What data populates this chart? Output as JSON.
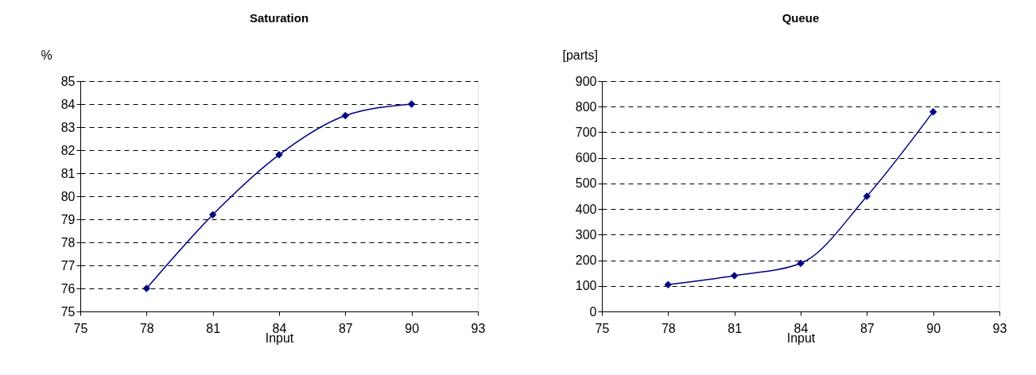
{
  "chart_data": [
    {
      "type": "line",
      "title": "Saturation",
      "xlabel": "Input",
      "ylabel": "%",
      "x": [
        78,
        81,
        84,
        87,
        90
      ],
      "series": [
        {
          "color": "#000080",
          "values": [
            76,
            79.2,
            81.8,
            83.5,
            84
          ]
        }
      ],
      "xlim": [
        75,
        93
      ],
      "xticks": [
        75,
        78,
        81,
        84,
        87,
        90,
        93
      ],
      "ylim": [
        75,
        85
      ],
      "yticks": [
        75,
        76,
        77,
        78,
        79,
        80,
        81,
        82,
        83,
        84,
        85
      ],
      "grid": "y",
      "marker": "diamond",
      "line_style": "solid"
    },
    {
      "type": "line",
      "title": "Queue",
      "xlabel": "Input",
      "ylabel": "[parts]",
      "x": [
        78,
        81,
        84,
        87,
        90
      ],
      "series": [
        {
          "color": "#000080",
          "values": [
            105,
            140,
            188,
            450,
            780
          ]
        }
      ],
      "xlim": [
        75,
        93
      ],
      "xticks": [
        75,
        78,
        81,
        84,
        87,
        90,
        93
      ],
      "ylim": [
        0,
        900
      ],
      "yticks": [
        0,
        100,
        200,
        300,
        400,
        500,
        600,
        700,
        800,
        900
      ],
      "grid": "y",
      "marker": "diamond",
      "line_style": "solid"
    }
  ]
}
